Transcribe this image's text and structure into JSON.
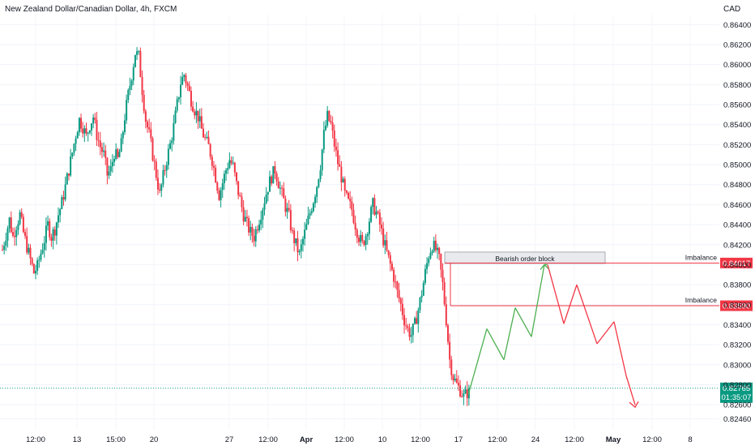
{
  "header": {
    "title": "New Zealand Dollar/Canadian Dollar, 4h, FXCM",
    "currency": "CAD"
  },
  "chart_data": {
    "type": "candlestick",
    "symbol": "NZDCAD",
    "timeframe": "4h",
    "ylim": [
      0.8235,
      0.865
    ],
    "yticks": [
      0.8246,
      0.826,
      0.828,
      0.83,
      0.832,
      0.834,
      0.836,
      0.838,
      0.84,
      0.842,
      0.844,
      0.846,
      0.848,
      0.85,
      0.852,
      0.854,
      0.856,
      0.858,
      0.86,
      0.862,
      0.864
    ],
    "ytick_labels": [
      "0.82460",
      "0.82600",
      "0.82800",
      "0.83000",
      "0.83200",
      "0.83400",
      "0.83600",
      "0.83800",
      "0.84000",
      "0.84200",
      "0.84400",
      "0.84600",
      "0.84800",
      "0.85000",
      "0.85200",
      "0.85400",
      "0.85600",
      "0.85800",
      "0.86000",
      "0.86200",
      "0.86400"
    ],
    "xticks": [
      "12:00",
      "13",
      "15:00",
      "20",
      "27",
      "12:00",
      "Apr",
      "12:00",
      "10",
      "12:00",
      "17",
      "12:00",
      "24",
      "12:00",
      "May",
      "12:00",
      "8"
    ],
    "colors": {
      "up": "#089981",
      "down": "#f23645",
      "projection_up": "#4caf50",
      "projection_down": "#f23645"
    },
    "current_price": {
      "value": 0.82765,
      "label": "0.82765",
      "countdown": "01:35:07"
    },
    "annotations": [
      {
        "type": "box",
        "label": "Bearish order block"
      },
      {
        "type": "hline",
        "label": "Imbalance",
        "price": 0.84017,
        "price_label": "0.84017"
      },
      {
        "type": "hline",
        "label": "Imbalance",
        "price": 0.8359,
        "price_label": "0.83590"
      }
    ],
    "projection_path": [
      [
        0.827,
        "g"
      ],
      [
        0.8336,
        "g"
      ],
      [
        0.8305,
        "g"
      ],
      [
        0.8357,
        "g"
      ],
      [
        0.8328,
        "g"
      ],
      [
        0.84,
        "g"
      ],
      [
        0.84,
        "r"
      ],
      [
        0.8341,
        "r"
      ],
      [
        0.838,
        "r"
      ],
      [
        0.8321,
        "r"
      ],
      [
        0.8343,
        "r"
      ],
      [
        0.8289,
        "r"
      ],
      [
        0.826,
        "r"
      ]
    ],
    "path_points": [
      0.8415,
      0.843,
      0.8445,
      0.8428,
      0.844,
      0.845,
      0.8432,
      0.8418,
      0.8405,
      0.8392,
      0.8398,
      0.8412,
      0.8425,
      0.844,
      0.8428,
      0.8436,
      0.845,
      0.8462,
      0.8478,
      0.8495,
      0.8512,
      0.853,
      0.8545,
      0.8538,
      0.8528,
      0.854,
      0.8548,
      0.853,
      0.8518,
      0.851,
      0.849,
      0.8495,
      0.8512,
      0.8505,
      0.852,
      0.8548,
      0.857,
      0.859,
      0.8612,
      0.8608,
      0.8575,
      0.8545,
      0.853,
      0.851,
      0.849,
      0.847,
      0.8488,
      0.8505,
      0.852,
      0.8538,
      0.856,
      0.8582,
      0.859,
      0.8578,
      0.8565,
      0.8555,
      0.8548,
      0.8535,
      0.8525,
      0.8518,
      0.8505,
      0.8488,
      0.847,
      0.8482,
      0.8495,
      0.8505,
      0.8498,
      0.848,
      0.8465,
      0.845,
      0.844,
      0.8432,
      0.8428,
      0.844,
      0.8452,
      0.8465,
      0.8478,
      0.8488,
      0.8495,
      0.8482,
      0.847,
      0.8458,
      0.8448,
      0.843,
      0.842,
      0.841,
      0.8425,
      0.8438,
      0.8452,
      0.8465,
      0.848,
      0.85,
      0.853,
      0.8548,
      0.854,
      0.852,
      0.8502,
      0.8488,
      0.847,
      0.8462,
      0.8455,
      0.844,
      0.8428,
      0.842,
      0.843,
      0.8445,
      0.846,
      0.8452,
      0.844,
      0.8425,
      0.8412,
      0.84,
      0.8388,
      0.8372,
      0.836,
      0.8345,
      0.8335,
      0.833,
      0.834,
      0.8355,
      0.8372,
      0.8392,
      0.841,
      0.842,
      0.8415,
      0.8405,
      0.838,
      0.8345,
      0.8305,
      0.8288,
      0.828,
      0.8275,
      0.8268,
      0.8272
    ]
  }
}
